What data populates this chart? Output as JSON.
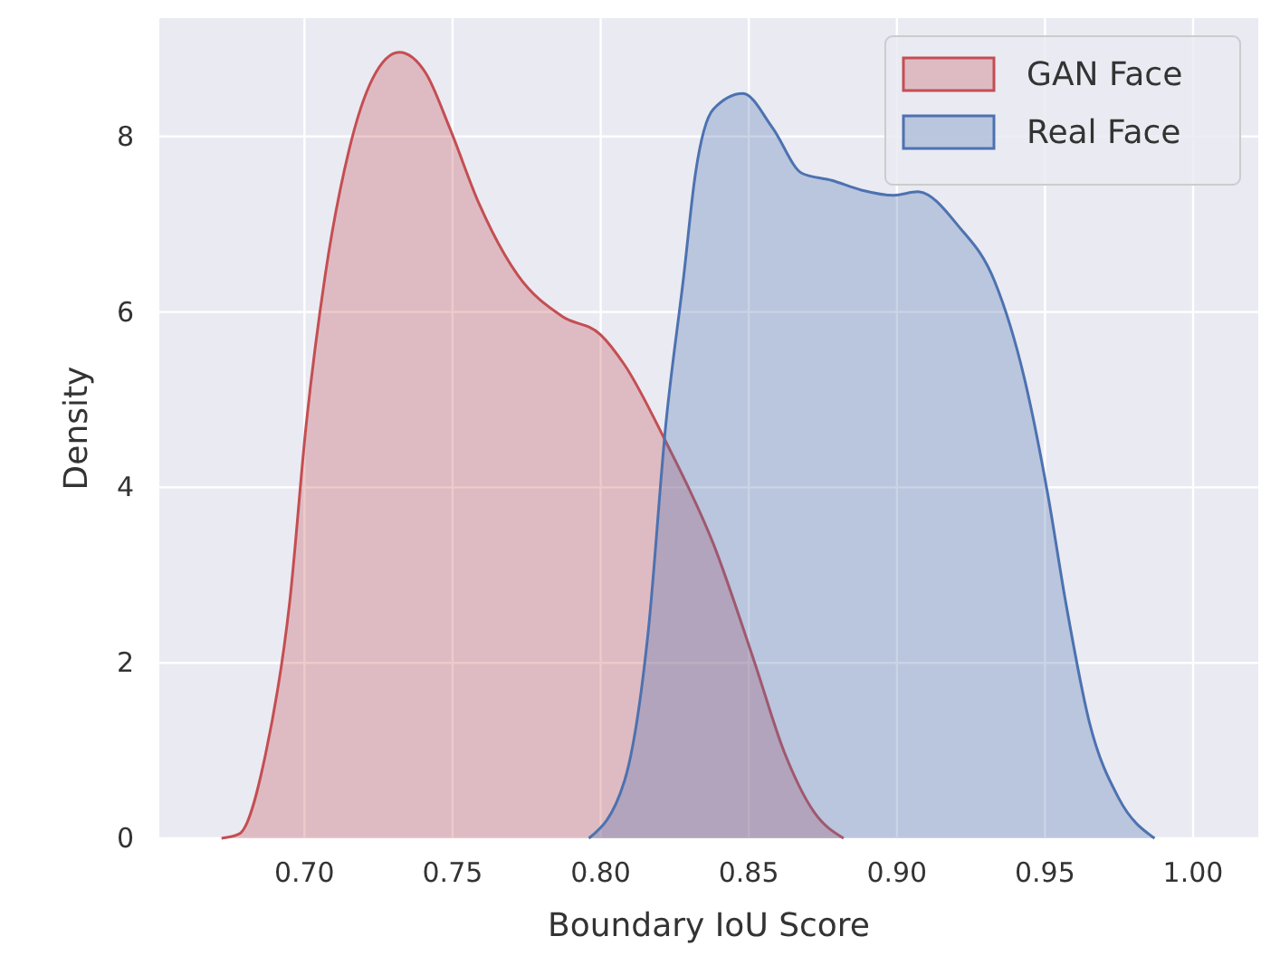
{
  "chart_data": {
    "type": "area",
    "xlabel": "Boundary IoU Score",
    "ylabel": "Density",
    "xlim": [
      0.651,
      1.022
    ],
    "ylim": [
      0,
      9.35
    ],
    "xticks": [
      {
        "value": 0.7,
        "label": "0.70"
      },
      {
        "value": 0.75,
        "label": "0.75"
      },
      {
        "value": 0.8,
        "label": "0.80"
      },
      {
        "value": 0.85,
        "label": "0.85"
      },
      {
        "value": 0.9,
        "label": "0.90"
      },
      {
        "value": 0.95,
        "label": "0.95"
      },
      {
        "value": 1.0,
        "label": "1.00"
      }
    ],
    "yticks": [
      0,
      2,
      4,
      6,
      8
    ],
    "grid": true,
    "legend": "top right",
    "series": [
      {
        "name": "GAN Face",
        "color": "#c44e52",
        "x": [
          0.672,
          0.678,
          0.687,
          0.695,
          0.7006,
          0.707,
          0.715,
          0.723,
          0.732,
          0.741,
          0.749,
          0.759,
          0.772,
          0.787,
          0.8,
          0.808,
          0.822,
          0.838,
          0.852,
          0.862,
          0.872,
          0.882
        ],
        "values": [
          0,
          0.05,
          0.98,
          2.69,
          4.72,
          6.42,
          7.84,
          8.66,
          8.96,
          8.72,
          8.1,
          7.23,
          6.42,
          5.95,
          5.74,
          5.4,
          4.52,
          3.36,
          2.0,
          0.98,
          0.3,
          0
        ]
      },
      {
        "name": "Real Face",
        "color": "#4c72b0",
        "x": [
          0.796,
          0.808,
          0.816,
          0.822,
          0.828,
          0.832,
          0.838,
          0.848,
          0.858,
          0.868,
          0.878,
          0.888,
          0.899,
          0.907,
          0.921,
          0.933,
          0.943,
          0.951,
          0.957,
          0.965,
          0.975,
          0.987
        ],
        "values": [
          0,
          0.65,
          2.34,
          4.72,
          6.4,
          7.58,
          8.31,
          8.49,
          8.1,
          7.58,
          7.5,
          7.39,
          7.33,
          7.37,
          6.97,
          6.35,
          5.25,
          3.91,
          2.69,
          1.32,
          0.45,
          0
        ]
      }
    ]
  }
}
